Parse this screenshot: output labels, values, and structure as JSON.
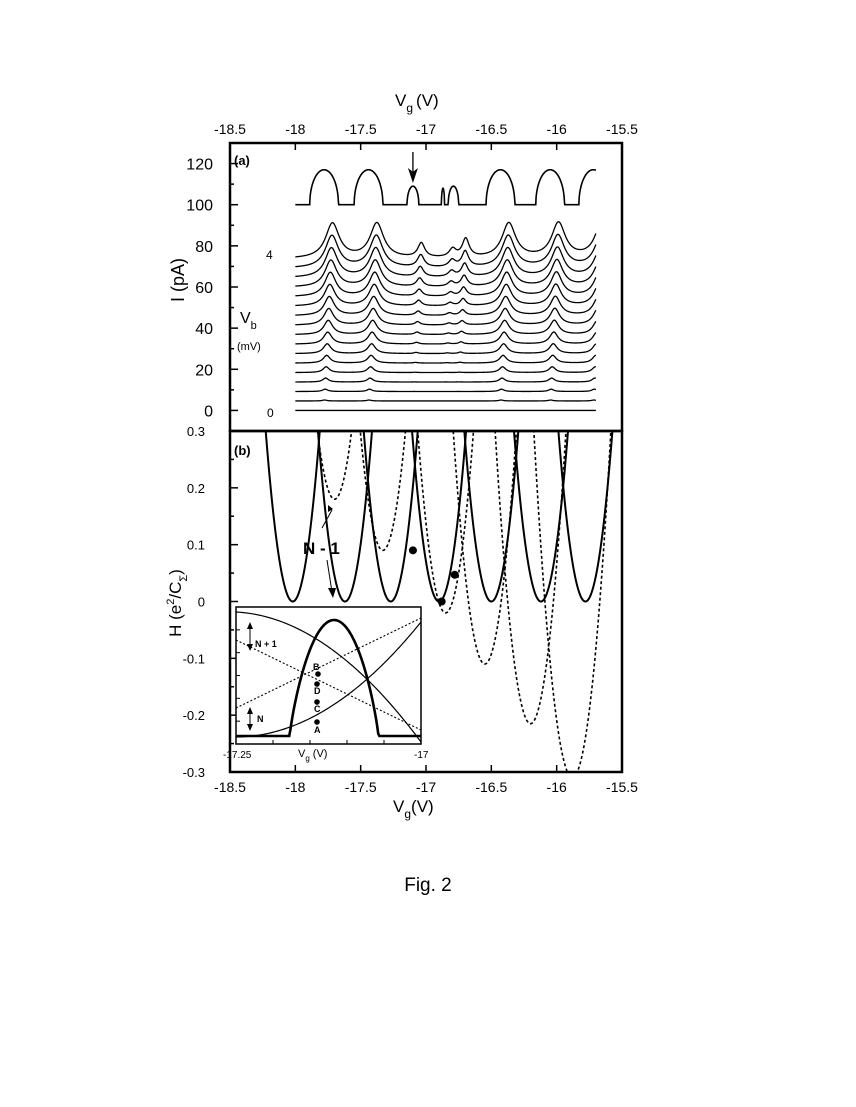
{
  "caption": "Fig. 2",
  "chart_data": [
    {
      "type": "line",
      "panel_label": "(a)",
      "title": "",
      "xlabel_main": "V",
      "xlabel_sub": "g",
      "xlabel_unit": "(V)",
      "x_axis_position": "top",
      "xlim": [
        -18.5,
        -15.5
      ],
      "xticks": [
        -18.5,
        -18,
        -17.5,
        -17,
        -16.5,
        -16,
        -15.5
      ],
      "xtick_labels": [
        "-18.5",
        "-18",
        "-17.5",
        "-17",
        "-16.5",
        "-16",
        "-15.5"
      ],
      "ylabel": "I  (pA)",
      "ylim": [
        -10,
        130
      ],
      "yticks": [
        0,
        20,
        40,
        60,
        80,
        100,
        120
      ],
      "ytick_labels": [
        "0",
        "20",
        "40",
        "60",
        "80",
        "100",
        "120"
      ],
      "curve_label_main": "V",
      "curve_label_sub": "b",
      "curve_label_unit": "(mV)",
      "label_top": "4",
      "label_bottom": "0",
      "trace_x_range": [
        -18.0,
        -15.7
      ],
      "traces": {
        "count": 17,
        "baseline_start": 0,
        "baseline_step": 4.6,
        "x_shift_per_trace": 0.004,
        "peaks": [
          {
            "x": -17.78,
            "amplitude_top": 17,
            "type": "strong"
          },
          {
            "x": -17.44,
            "amplitude_top": 17,
            "type": "strong"
          },
          {
            "x": -17.1,
            "amplitude_top": 7,
            "type": "weak"
          },
          {
            "x": -16.86,
            "amplitude_top": 4,
            "type": "weak"
          },
          {
            "x": -16.76,
            "amplitude_top": 9,
            "type": "weak"
          },
          {
            "x": -16.43,
            "amplitude_top": 17,
            "type": "strong"
          },
          {
            "x": -16.05,
            "amplitude_top": 17,
            "type": "strong"
          },
          {
            "x": -15.72,
            "amplitude_top": 17,
            "type": "strong"
          }
        ]
      },
      "top_trace": {
        "baseline": 100,
        "peaks": [
          {
            "x": -17.78,
            "halfwidth": 0.11,
            "height": 17
          },
          {
            "x": -17.44,
            "halfwidth": 0.11,
            "height": 17
          },
          {
            "x": -17.1,
            "halfwidth": 0.045,
            "height": 9
          },
          {
            "x": -16.87,
            "halfwidth": 0.012,
            "height": 8
          },
          {
            "x": -16.79,
            "halfwidth": 0.04,
            "height": 9
          },
          {
            "x": -16.43,
            "halfwidth": 0.11,
            "height": 17
          },
          {
            "x": -16.05,
            "halfwidth": 0.11,
            "height": 17
          },
          {
            "x": -15.72,
            "halfwidth": 0.11,
            "height": 17
          }
        ]
      },
      "arrow_at_x": -17.1
    },
    {
      "type": "line",
      "panel_label": "(b)",
      "title": "",
      "xlabel_main": "V",
      "xlabel_sub": "g",
      "xlabel_unit": "(V)",
      "xlim": [
        -18.5,
        -15.5
      ],
      "xticks": [
        -18.5,
        -18,
        -17.5,
        -17,
        -16.5,
        -16,
        -15.5
      ],
      "xtick_labels": [
        "-18.5",
        "-18",
        "-17.5",
        "-17",
        "-16.5",
        "-16",
        "-15.5"
      ],
      "ylabel_main": "H  (e",
      "ylabel_sup": "2",
      "ylabel_mid": "/C",
      "ylabel_sub": "Σ",
      "ylabel_end": ")",
      "ylim": [
        -0.3,
        0.3
      ],
      "yticks": [
        -0.3,
        -0.2,
        -0.1,
        0,
        0.1,
        0.2,
        0.3
      ],
      "ytick_labels": [
        "-0.3",
        "-0.2",
        "-0.1",
        "0",
        "0.1",
        "0.2",
        "0.3"
      ],
      "annotation": "N - 1",
      "solid_parabolas": [
        {
          "vertex_x": -17.62,
          "vertex_y": 0.0
        },
        {
          "vertex_x": -17.27,
          "vertex_y": 0.0
        },
        {
          "vertex_x": -16.9,
          "vertex_y": 0.0
        },
        {
          "vertex_x": -16.5,
          "vertex_y": 0.0
        },
        {
          "vertex_x": -16.12,
          "vertex_y": 0.0
        },
        {
          "vertex_x": -15.78,
          "vertex_y": 0.0
        },
        {
          "vertex_x": -18.02,
          "vertex_y": 0.0
        }
      ],
      "dashed_parabolas": [
        {
          "vertex_x": -17.7,
          "vertex_y": 0.18
        },
        {
          "vertex_x": -17.33,
          "vertex_y": 0.09
        },
        {
          "vertex_x": -16.85,
          "vertex_y": -0.02
        },
        {
          "vertex_x": -16.55,
          "vertex_y": -0.11
        },
        {
          "vertex_x": -16.2,
          "vertex_y": -0.215
        },
        {
          "vertex_x": -15.88,
          "vertex_y": -0.31
        }
      ],
      "marked_points": [
        {
          "x": -17.1,
          "y": 0.09
        },
        {
          "x": -16.88,
          "y": 0.0
        },
        {
          "x": -16.78,
          "y": 0.047
        }
      ],
      "inset": {
        "xlabel_main": "V",
        "xlabel_sub": "g",
        "xlabel_unit": "(V)",
        "xlim": [
          -17.25,
          -17.0
        ],
        "xtick_labels": [
          "-17.25",
          "-17"
        ],
        "labels": [
          "N + 1",
          "N"
        ],
        "point_labels": [
          "B",
          "D",
          "C",
          "A"
        ]
      }
    }
  ]
}
